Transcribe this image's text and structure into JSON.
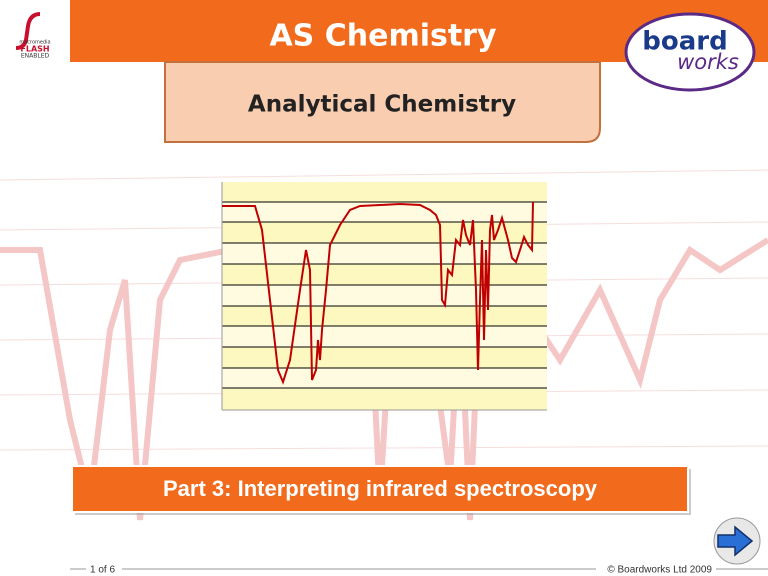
{
  "header": {
    "title": "AS Chemistry",
    "badge": [
      "macromedia",
      "FLASH",
      "ENABLED"
    ],
    "logo": [
      "board",
      "works"
    ]
  },
  "subtitle": "Analytical Chemistry",
  "banner": "Part 3: Interpreting infrared spectroscopy",
  "footer": {
    "page": "1 of 6",
    "copyright": "© Boardworks Ltd 2009"
  }
}
